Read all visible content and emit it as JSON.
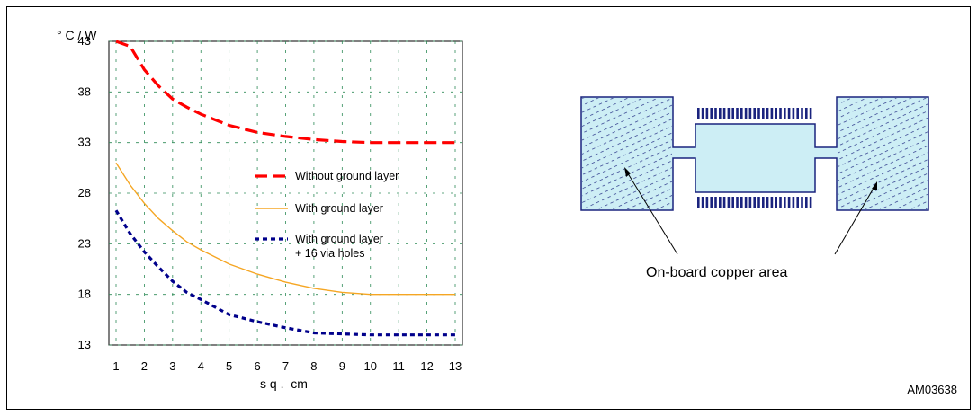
{
  "figure_id": "AM03638",
  "chart_data": {
    "type": "line",
    "ylabel": "° C / W",
    "xlabel": "s q .  cm",
    "xlim": [
      1,
      13
    ],
    "ylim": [
      13,
      43
    ],
    "x_ticks": [
      "1",
      "2",
      "3",
      "4",
      "5",
      "6",
      "7",
      "8",
      "9",
      "10",
      "11",
      "12",
      "13"
    ],
    "y_ticks": [
      "13",
      "18",
      "23",
      "28",
      "33",
      "38",
      "43"
    ],
    "grid": true,
    "legend_position": "center-right",
    "series": [
      {
        "name": "Without ground layer",
        "color": "#ff0000",
        "style": "long-dash",
        "x": [
          1,
          1.5,
          2,
          2.5,
          3,
          3.5,
          4,
          5,
          6,
          7,
          8,
          9,
          10,
          11,
          12,
          13
        ],
        "y": [
          46,
          42.5,
          40.2,
          38.6,
          37.3,
          36.5,
          35.8,
          34.7,
          34.0,
          33.6,
          33.3,
          33.1,
          33.0,
          33.0,
          33.0,
          33.0
        ]
      },
      {
        "name": "With ground layer",
        "color": "#f5a623",
        "style": "solid",
        "x": [
          1,
          1.5,
          2,
          2.5,
          3,
          3.5,
          4,
          5,
          6,
          7,
          8,
          9,
          10,
          11,
          12,
          13
        ],
        "y": [
          31,
          28.8,
          27.0,
          25.5,
          24.3,
          23.2,
          22.4,
          21.0,
          20.0,
          19.2,
          18.6,
          18.2,
          18.0,
          18.0,
          18.0,
          18.0
        ]
      },
      {
        "name": "With ground layer\n+ 16 via holes",
        "color": "#00008b",
        "style": "dotted",
        "x": [
          1,
          1.5,
          2,
          2.5,
          3,
          3.5,
          4,
          5,
          6,
          7,
          8,
          9,
          10,
          11,
          12,
          13
        ],
        "y": [
          26.3,
          24.0,
          22.2,
          20.7,
          19.3,
          18.2,
          17.5,
          16.0,
          15.3,
          14.7,
          14.2,
          14.1,
          14.0,
          14.0,
          14.0,
          14.0
        ]
      }
    ]
  },
  "diagram": {
    "label": "On-board copper area",
    "colors": {
      "fill": "#cdeef5",
      "stroke": "#1a237e",
      "pad": "#1a237e"
    }
  }
}
